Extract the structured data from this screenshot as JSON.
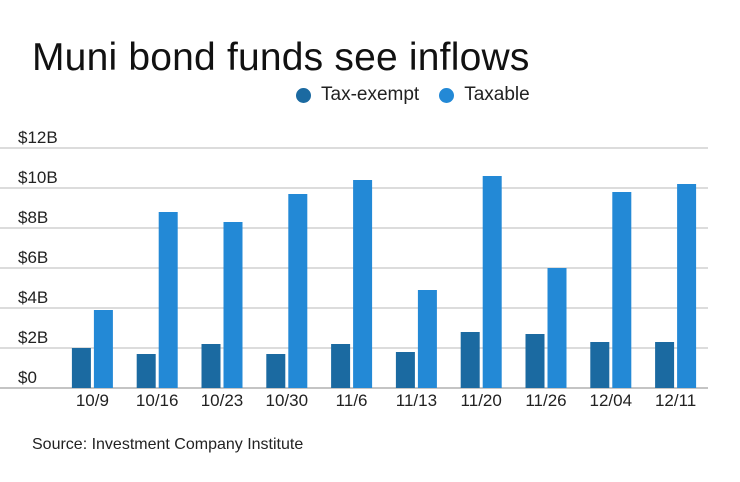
{
  "colors": {
    "tax_exempt": "#1b6aa1",
    "taxable": "#2389d6",
    "grid": "#b8b8b8",
    "axis": "#888888"
  },
  "chart_data": {
    "type": "bar",
    "title": "Muni bond funds see inflows",
    "source": "Source: Investment Company Institute",
    "categories": [
      "10/9",
      "10/16",
      "10/23",
      "10/30",
      "11/6",
      "11/13",
      "11/20",
      "11/26",
      "12/04",
      "12/11"
    ],
    "series": [
      {
        "name": "Tax-exempt",
        "color": "#1b6aa1",
        "values": [
          2.0,
          1.7,
          2.2,
          1.7,
          2.2,
          1.8,
          2.8,
          2.7,
          2.3,
          2.3
        ]
      },
      {
        "name": "Taxable",
        "color": "#2389d6",
        "values": [
          3.9,
          8.8,
          8.3,
          9.7,
          10.4,
          4.9,
          10.6,
          6.0,
          9.8,
          10.2
        ]
      }
    ],
    "yticks": [
      0,
      2,
      4,
      6,
      8,
      10,
      12
    ],
    "ytick_labels": [
      "$0",
      "$2B",
      "$4B",
      "$6B",
      "$8B",
      "$10B",
      "$12B"
    ],
    "ylim": [
      0,
      12
    ],
    "grid": true,
    "legend_position": "top-right"
  }
}
